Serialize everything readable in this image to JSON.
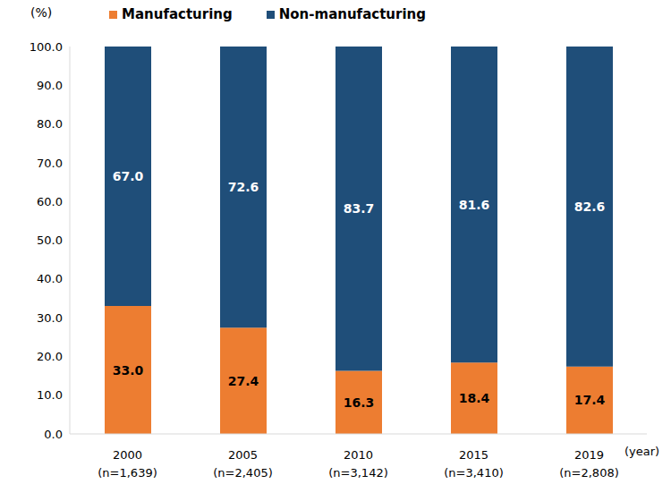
{
  "chart_data": {
    "type": "bar",
    "stacked": true,
    "data_labels": true,
    "legend": "top",
    "grid": false,
    "y_label": "(%)",
    "x_label": "(year)",
    "categories": [
      "2000\n(n=1,639)",
      "2005\n(n=2,405)",
      "2010\n(n=3,142)",
      "2015\n(n=3,410)",
      "2019\n(n=2,808)"
    ],
    "series": [
      {
        "name": "Manufacturing",
        "color": "#ED7D31",
        "values": [
          33.0,
          27.4,
          16.3,
          18.4,
          17.4
        ],
        "value_labels": [
          "33.0",
          "27.4",
          "16.3",
          "18.4",
          "17.4"
        ]
      },
      {
        "name": "Non-manufacturing",
        "color": "#1F4E79",
        "values": [
          67.0,
          72.6,
          83.7,
          81.6,
          82.6
        ],
        "value_labels": [
          "67.0",
          "72.6",
          "83.7",
          "81.6",
          "82.6"
        ]
      }
    ],
    "ylim": [
      0,
      100
    ],
    "yticks": [
      {
        "value": 0,
        "label": "0.0"
      },
      {
        "value": 10,
        "label": "10.0"
      },
      {
        "value": 20,
        "label": "20.0"
      },
      {
        "value": 30,
        "label": "30.0"
      },
      {
        "value": 40,
        "label": "40.0"
      },
      {
        "value": 50,
        "label": "50.0"
      },
      {
        "value": 60,
        "label": "60.0"
      },
      {
        "value": 70,
        "label": "70.0"
      },
      {
        "value": 80,
        "label": "80.0"
      },
      {
        "value": 90,
        "label": "90.0"
      },
      {
        "value": 100,
        "label": "100.0"
      }
    ]
  }
}
